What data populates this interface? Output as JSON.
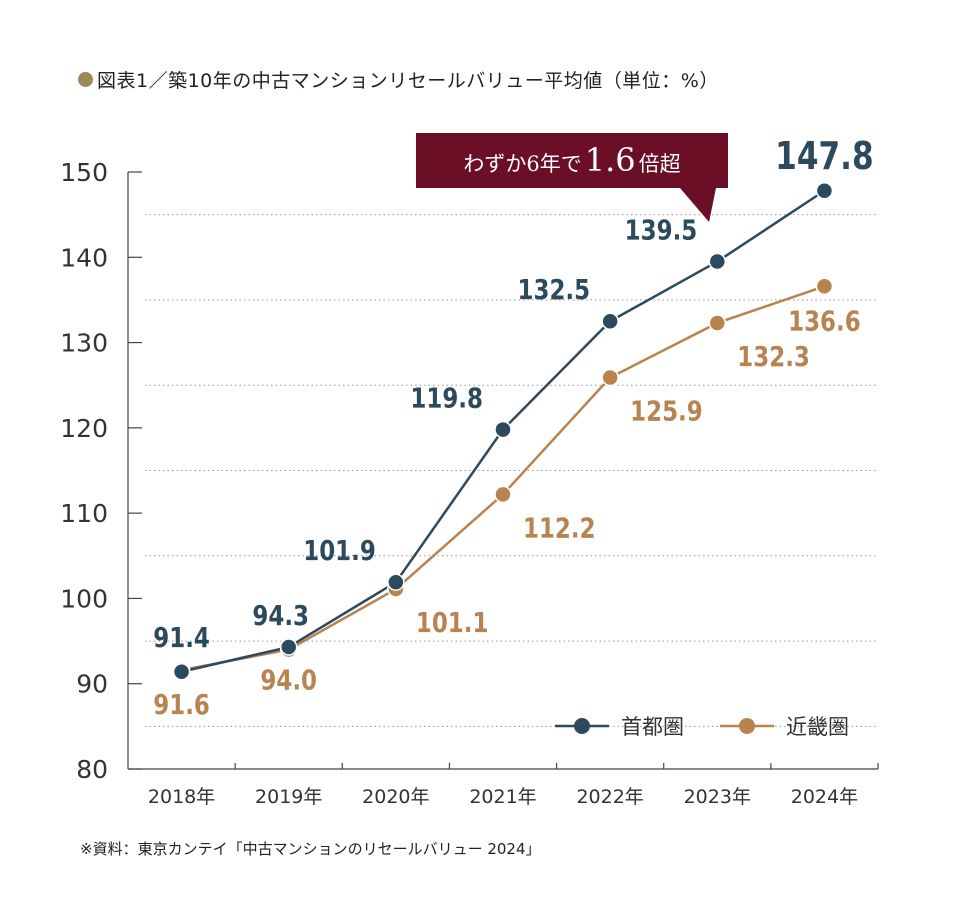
{
  "title": {
    "bullet_color": "#9a8a55",
    "text": "図表1／築10年の中古マンションリセールバリュー平均値（単位：%）"
  },
  "callout": {
    "prefix": "わずか6年で",
    "value": "1.6",
    "suffix": "倍超",
    "color": "#6b0f26"
  },
  "source": "※資料：東京カンテイ「中古マンションのリセールバリュー 2024」",
  "chart_data": {
    "type": "line",
    "categories": [
      "2018年",
      "2019年",
      "2020年",
      "2021年",
      "2022年",
      "2023年",
      "2024年"
    ],
    "series": [
      {
        "name": "首都圏",
        "color": "#2c4a5e",
        "values": [
          91.4,
          94.3,
          101.9,
          119.8,
          132.5,
          139.5,
          147.8
        ],
        "labels": [
          "91.4",
          "94.3",
          "101.9",
          "119.8",
          "132.5",
          "139.5",
          "147.8"
        ]
      },
      {
        "name": "近畿圏",
        "color": "#b8834e",
        "values": [
          91.6,
          94.0,
          101.1,
          112.2,
          125.9,
          132.3,
          136.6
        ],
        "labels": [
          "91.6",
          "94.0",
          "101.1",
          "112.2",
          "125.9",
          "132.3",
          "136.6"
        ]
      }
    ],
    "ylim": [
      80,
      150
    ],
    "yticks": [
      "80",
      "90",
      "100",
      "110",
      "120",
      "130",
      "140",
      "150"
    ],
    "grid": true,
    "legend": "bottom-right"
  }
}
